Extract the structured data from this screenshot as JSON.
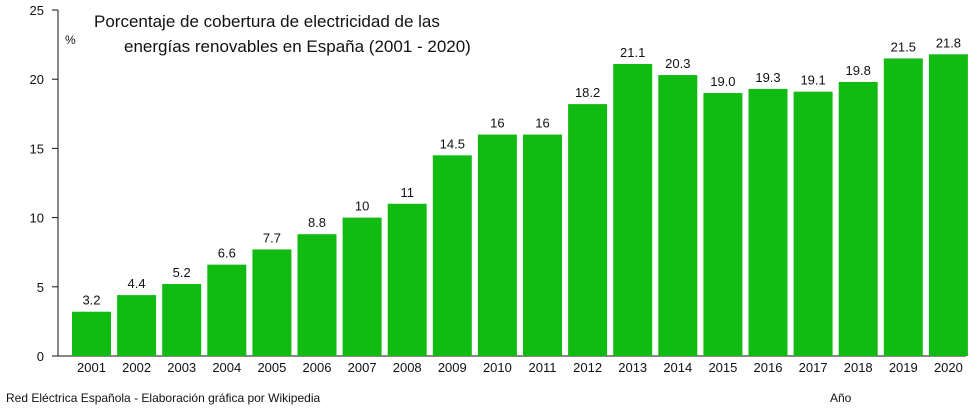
{
  "chart_data": {
    "type": "bar",
    "title_lines": [
      "Porcentaje de cobertura de electricidad de las",
      "energías renovables en España (2001 - 2020)"
    ],
    "ylabel": "%",
    "xlabel": "Año",
    "source": "Red Eléctrica Española - Elaboración gráfica por Wikipedia",
    "ylim": [
      0,
      25
    ],
    "yticks": [
      "0",
      "5",
      "10",
      "15",
      "20",
      "25"
    ],
    "categories": [
      "2001",
      "2002",
      "2003",
      "2004",
      "2005",
      "2006",
      "2007",
      "2008",
      "2009",
      "2010",
      "2011",
      "2012",
      "2013",
      "2014",
      "2015",
      "2016",
      "2017",
      "2018",
      "2019",
      "2020"
    ],
    "values": [
      3.2,
      4.4,
      5.2,
      6.6,
      7.7,
      8.8,
      10,
      11,
      14.5,
      16,
      16,
      18.2,
      21.1,
      20.3,
      19.0,
      19.3,
      19.1,
      19.8,
      21.5,
      21.8
    ],
    "value_labels": [
      "3.2",
      "4.4",
      "5.2",
      "6.6",
      "7.7",
      "8.8",
      "10",
      "11",
      "14.5",
      "16",
      "16",
      "18.2",
      "21.1",
      "20.3",
      "19.0",
      "19.3",
      "19.1",
      "19.8",
      "21.5",
      "21.8"
    ],
    "bar_color": "#11bb11",
    "grid": false
  }
}
